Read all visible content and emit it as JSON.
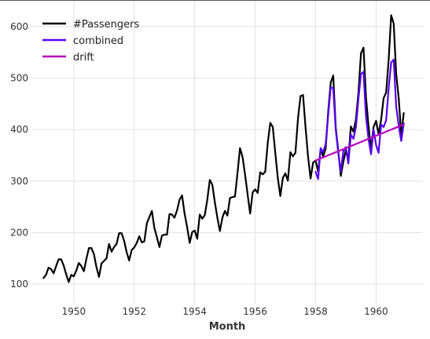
{
  "chart_data": {
    "type": "line",
    "xlabel": "Month",
    "ylabel": "",
    "xlim": [
      1948.6,
      1961.55
    ],
    "ylim": [
      62,
      650
    ],
    "xticks": [
      1950,
      1952,
      1954,
      1956,
      1958,
      1960
    ],
    "yticks": [
      100,
      200,
      300,
      400,
      500,
      600
    ],
    "grid": true,
    "legend_position": "top-left",
    "series": [
      {
        "name": "#Passengers",
        "color": "#000000",
        "x_start": 1949.0,
        "x_step": 0.08333333,
        "values": [
          112,
          118,
          132,
          129,
          121,
          135,
          148,
          148,
          136,
          119,
          104,
          118,
          115,
          126,
          141,
          135,
          125,
          149,
          170,
          170,
          158,
          133,
          114,
          140,
          145,
          150,
          178,
          163,
          172,
          178,
          199,
          199,
          184,
          162,
          146,
          166,
          171,
          180,
          193,
          181,
          183,
          218,
          230,
          242,
          209,
          191,
          172,
          194,
          196,
          196,
          236,
          235,
          229,
          243,
          264,
          272,
          237,
          211,
          180,
          201,
          204,
          188,
          235,
          227,
          234,
          264,
          302,
          293,
          259,
          229,
          203,
          229,
          242,
          233,
          267,
          269,
          270,
          315,
          364,
          347,
          312,
          274,
          237,
          278,
          284,
          277,
          317,
          313,
          318,
          374,
          413,
          405,
          355,
          306,
          271,
          306,
          315,
          301,
          356,
          348,
          355,
          422,
          465,
          467,
          404,
          347,
          305,
          336,
          340,
          318,
          362,
          348,
          363,
          435,
          491,
          505,
          404,
          359,
          310,
          337,
          360,
          342,
          406,
          396,
          420,
          472,
          548,
          559,
          463,
          407,
          362,
          405,
          417,
          391,
          419,
          461,
          472,
          535,
          622,
          606,
          508,
          461,
          390,
          432
        ]
      },
      {
        "name": "combined",
        "color": "#5500ee",
        "x_start": 1958.0,
        "x_step": 0.08333333,
        "values": [
          318,
          304,
          364,
          356,
          372,
          428,
          482,
          480,
          400,
          355,
          318,
          358,
          366,
          334,
          390,
          382,
          405,
          460,
          508,
          512,
          425,
          382,
          352,
          400,
          370,
          355,
          410,
          405,
          418,
          480,
          530,
          536,
          445,
          408,
          378,
          412
        ]
      },
      {
        "name": "drift",
        "color": "#bb00bb",
        "x_start": 1958.0,
        "x_step": 0.08333333,
        "values": [
          340,
          342,
          344,
          346,
          348,
          350,
          352,
          354,
          356,
          358,
          360,
          362,
          364,
          366,
          368,
          370,
          372,
          374,
          376,
          378,
          380,
          382,
          384,
          386,
          388,
          390,
          392,
          394,
          396,
          398,
          400,
          402,
          404,
          406,
          408,
          410
        ]
      }
    ]
  }
}
